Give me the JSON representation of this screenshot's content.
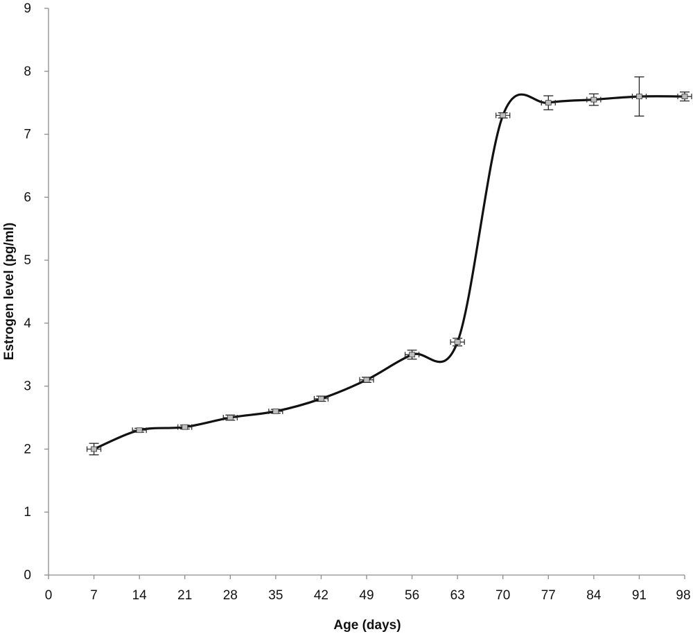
{
  "chart_data": {
    "type": "line",
    "title": "",
    "xlabel": "Age (days)",
    "ylabel": "Estrogen level (pg/ml)",
    "xlim": [
      0,
      98
    ],
    "ylim": [
      0,
      9
    ],
    "xticks": [
      "0",
      "7",
      "14",
      "21",
      "28",
      "35",
      "42",
      "49",
      "56",
      "63",
      "70",
      "77",
      "84",
      "91",
      "98"
    ],
    "yticks": [
      "0",
      "1",
      "2",
      "3",
      "4",
      "5",
      "6",
      "7",
      "8",
      "9"
    ],
    "grid": false,
    "legend": "none",
    "smooth": true,
    "line_color": "#111111",
    "series": [
      {
        "x": [
          7,
          14,
          21,
          28,
          35,
          42,
          49,
          56,
          63,
          70,
          77,
          84,
          91,
          98
        ],
        "y": [
          2.0,
          2.3,
          2.35,
          2.5,
          2.6,
          2.8,
          3.1,
          3.5,
          3.7,
          7.3,
          7.5,
          7.55,
          7.6,
          7.6
        ],
        "y_error": [
          0.08,
          0.02,
          0.02,
          0.03,
          0.02,
          0.03,
          0.03,
          0.06,
          0.05,
          0.03,
          0.1,
          0.08,
          0.3,
          0.06
        ]
      }
    ]
  }
}
